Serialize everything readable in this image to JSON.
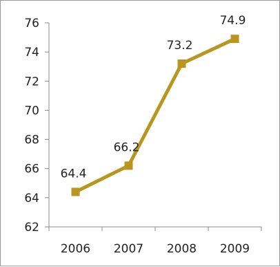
{
  "chart_data": {
    "type": "line",
    "categories": [
      "2006",
      "2007",
      "2008",
      "2009"
    ],
    "series": [
      {
        "values": [
          64.4,
          66.2,
          73.2,
          74.9
        ]
      }
    ],
    "data_labels": [
      "64.4",
      "66.2",
      "73.2",
      "74.9"
    ],
    "y_ticks": [
      "62",
      "64",
      "66",
      "68",
      "70",
      "72",
      "74",
      "76"
    ],
    "ylim": [
      62,
      76
    ],
    "grid": false,
    "legend": "none",
    "line_color": "#b8961f",
    "marker_color": "#b8961f"
  }
}
